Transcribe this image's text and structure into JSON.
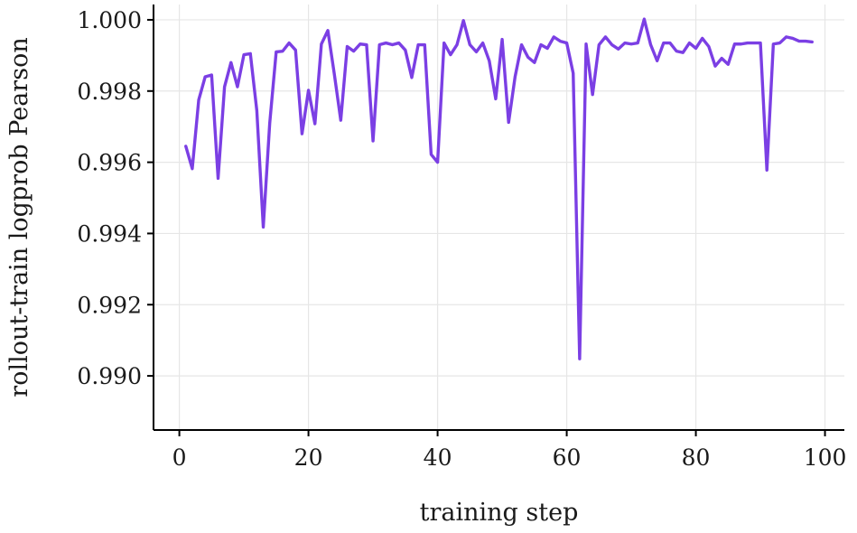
{
  "chart_data": {
    "type": "line",
    "title": "",
    "xlabel": "training step",
    "ylabel": "rollout-train logprob Pearson",
    "xlim": [
      -4,
      103
    ],
    "ylim": [
      0.98848,
      1.00043
    ],
    "xticks": [
      0,
      20,
      40,
      60,
      80,
      100
    ],
    "xtick_labels": [
      "0",
      "20",
      "40",
      "60",
      "80",
      "100"
    ],
    "yticks": [
      0.99,
      0.992,
      0.994,
      0.996,
      0.998,
      1.0
    ],
    "ytick_labels": [
      "0.990",
      "0.992",
      "0.994",
      "0.996",
      "0.998",
      "1.000"
    ],
    "grid": true,
    "color": "#7b3fe4",
    "series": [
      {
        "x": [
          1,
          2,
          3,
          4,
          5,
          6,
          7,
          8,
          9,
          10,
          11,
          12,
          13,
          14,
          15,
          16,
          17,
          18,
          19,
          20,
          21,
          22,
          23,
          24,
          25,
          26,
          27,
          28,
          29,
          30,
          31,
          32,
          33,
          34,
          35,
          36,
          37,
          38,
          39,
          40,
          41,
          42,
          43,
          44,
          45,
          46,
          47,
          48,
          49,
          50,
          51,
          52,
          53,
          54,
          55,
          56,
          57,
          58,
          59,
          60,
          61,
          62,
          63,
          64,
          65,
          66,
          67,
          68,
          69,
          70,
          71,
          72,
          73,
          74,
          75,
          76,
          77,
          78,
          79,
          80,
          81,
          82,
          83,
          84,
          85,
          86,
          87,
          88,
          89,
          90,
          91,
          92,
          93,
          94,
          95,
          96,
          97,
          98
        ],
        "values": [
          0.99645,
          0.99582,
          0.99775,
          0.9984,
          0.99845,
          0.99555,
          0.99812,
          0.9988,
          0.99812,
          0.99902,
          0.99905,
          0.99745,
          0.99418,
          0.9971,
          0.9991,
          0.99912,
          0.99935,
          0.99915,
          0.9968,
          0.99802,
          0.99708,
          0.99932,
          0.9997,
          0.99848,
          0.99718,
          0.99925,
          0.99912,
          0.99932,
          0.9993,
          0.9966,
          0.9993,
          0.99935,
          0.9993,
          0.99935,
          0.99915,
          0.99838,
          0.9993,
          0.9993,
          0.99622,
          0.996,
          0.99935,
          0.99902,
          0.9993,
          0.99998,
          0.9993,
          0.9991,
          0.99935,
          0.99885,
          0.99778,
          0.99945,
          0.99712,
          0.9984,
          0.9993,
          0.99895,
          0.9988,
          0.9993,
          0.9992,
          0.99952,
          0.9994,
          0.99935,
          0.9985,
          0.99048,
          0.99932,
          0.9979,
          0.9993,
          0.99952,
          0.9993,
          0.99918,
          0.99935,
          0.99932,
          0.99935,
          1.00002,
          0.9993,
          0.99885,
          0.99935,
          0.99935,
          0.99912,
          0.99908,
          0.99935,
          0.9992,
          0.99948,
          0.99925,
          0.9987,
          0.99892,
          0.99875,
          0.99932,
          0.99932,
          0.99935,
          0.99935,
          0.99935,
          0.99578,
          0.99932,
          0.99935,
          0.99952,
          0.99948,
          0.9994,
          0.9994,
          0.99938
        ]
      }
    ]
  }
}
